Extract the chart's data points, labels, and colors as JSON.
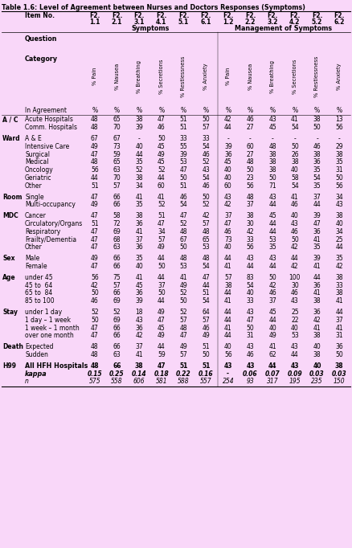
{
  "title": "Table 1.6: Level of Agreement between Nurses and Doctors Responses (Symptoms)",
  "bg_color": "#f9d7f9",
  "col_headers_row1": [
    "F2.",
    "F2.",
    "F2.",
    "F2.",
    "F2.",
    "F2.",
    "F2.",
    "F2.",
    "F2.",
    "F2.",
    "F2.",
    "F2."
  ],
  "col_headers_row2": [
    "1.1",
    "2.1",
    "3.1",
    "4.1",
    "5.1",
    "6.1",
    "1.2",
    "2.2",
    "3.2",
    "4.2",
    "5.2",
    "6.2"
  ],
  "group_headers": [
    "Symptoms",
    "Management of Symptoms"
  ],
  "rotated_headers": [
    "% Pain",
    "% Nausea",
    "% Breathing",
    "% Secretions",
    "% Restlessness",
    "% Anxiety",
    "% Pain",
    "% Nausea",
    "% Breathing",
    "% Secretions",
    "% Restlessness",
    "% Anxiety"
  ],
  "rows": [
    {
      "group": "",
      "label": "In Agreement",
      "values": [
        "%",
        "%",
        "%",
        "%",
        "%",
        "%",
        "%",
        "%",
        "%",
        "%",
        "%",
        "%"
      ],
      "bold": false,
      "italic": false
    },
    {
      "group": "A / C",
      "label": "Acute Hospitals",
      "values": [
        "48",
        "65",
        "38",
        "47",
        "51",
        "50",
        "42",
        "46",
        "43",
        "41",
        "38",
        "13"
      ],
      "bold": false,
      "italic": false
    },
    {
      "group": "",
      "label": "Comm. Hospitals",
      "values": [
        "48",
        "70",
        "39",
        "46",
        "51",
        "57",
        "44",
        "27",
        "45",
        "54",
        "50",
        "56"
      ],
      "bold": false,
      "italic": false
    },
    {
      "group": "Ward",
      "label": "A & E",
      "values": [
        "67",
        "67",
        "-",
        "50",
        "33",
        "33",
        "-",
        "-",
        "-",
        "-",
        "-",
        "-"
      ],
      "bold": false,
      "italic": false
    },
    {
      "group": "",
      "label": "Intensive Care",
      "values": [
        "49",
        "73",
        "40",
        "45",
        "55",
        "54",
        "39",
        "60",
        "48",
        "50",
        "46",
        "29"
      ],
      "bold": false,
      "italic": false
    },
    {
      "group": "",
      "label": "Surgical",
      "values": [
        "47",
        "59",
        "44",
        "49",
        "39",
        "46",
        "36",
        "27",
        "38",
        "26",
        "38",
        "38"
      ],
      "bold": false,
      "italic": false
    },
    {
      "group": "",
      "label": "Medical",
      "values": [
        "48",
        "65",
        "35",
        "45",
        "53",
        "52",
        "45",
        "48",
        "38",
        "38",
        "36",
        "35"
      ],
      "bold": false,
      "italic": false
    },
    {
      "group": "",
      "label": "Oncology",
      "values": [
        "56",
        "63",
        "52",
        "52",
        "47",
        "43",
        "40",
        "50",
        "38",
        "40",
        "35",
        "31"
      ],
      "bold": false,
      "italic": false
    },
    {
      "group": "",
      "label": "Geriatric",
      "values": [
        "44",
        "70",
        "38",
        "44",
        "50",
        "54",
        "40",
        "23",
        "50",
        "58",
        "54",
        "50"
      ],
      "bold": false,
      "italic": false
    },
    {
      "group": "",
      "label": "Other",
      "values": [
        "51",
        "57",
        "34",
        "60",
        "51",
        "46",
        "60",
        "56",
        "71",
        "54",
        "35",
        "56"
      ],
      "bold": false,
      "italic": false
    },
    {
      "group": "Room",
      "label": "Single",
      "values": [
        "47",
        "66",
        "41",
        "41",
        "46",
        "50",
        "43",
        "48",
        "43",
        "41",
        "37",
        "34"
      ],
      "bold": false,
      "italic": false
    },
    {
      "group": "",
      "label": "Multi-occupancy",
      "values": [
        "49",
        "66",
        "35",
        "52",
        "54",
        "52",
        "42",
        "37",
        "44",
        "46",
        "44",
        "43"
      ],
      "bold": false,
      "italic": false
    },
    {
      "group": "MDC",
      "label": "Cancer",
      "values": [
        "47",
        "58",
        "38",
        "51",
        "47",
        "42",
        "37",
        "38",
        "45",
        "40",
        "39",
        "38"
      ],
      "bold": false,
      "italic": false
    },
    {
      "group": "",
      "label": "Circulatory/Organs",
      "values": [
        "51",
        "72",
        "36",
        "47",
        "52",
        "57",
        "47",
        "30",
        "44",
        "43",
        "47",
        "40"
      ],
      "bold": false,
      "italic": false
    },
    {
      "group": "",
      "label": "Respiratory",
      "values": [
        "47",
        "69",
        "41",
        "34",
        "48",
        "48",
        "46",
        "42",
        "44",
        "46",
        "36",
        "34"
      ],
      "bold": false,
      "italic": false
    },
    {
      "group": "",
      "label": "Frailty/Dementia",
      "values": [
        "47",
        "68",
        "37",
        "57",
        "67",
        "65",
        "73",
        "33",
        "53",
        "50",
        "41",
        "25"
      ],
      "bold": false,
      "italic": false
    },
    {
      "group": "",
      "label": "Other",
      "values": [
        "47",
        "63",
        "36",
        "49",
        "50",
        "53",
        "40",
        "56",
        "35",
        "42",
        "35",
        "44"
      ],
      "bold": false,
      "italic": false
    },
    {
      "group": "Sex",
      "label": "Male",
      "values": [
        "49",
        "66",
        "35",
        "44",
        "48",
        "48",
        "44",
        "43",
        "43",
        "44",
        "39",
        "35"
      ],
      "bold": false,
      "italic": false
    },
    {
      "group": "",
      "label": "Female",
      "values": [
        "47",
        "66",
        "40",
        "50",
        "53",
        "54",
        "41",
        "44",
        "44",
        "42",
        "41",
        "42"
      ],
      "bold": false,
      "italic": false
    },
    {
      "group": "Age",
      "label": "under 45",
      "values": [
        "56",
        "75",
        "41",
        "44",
        "41",
        "47",
        "57",
        "83",
        "50",
        "100",
        "44",
        "38"
      ],
      "bold": false,
      "italic": false
    },
    {
      "group": "",
      "label": "45 to  64",
      "values": [
        "42",
        "57",
        "45",
        "37",
        "49",
        "44",
        "38",
        "54",
        "42",
        "30",
        "36",
        "33"
      ],
      "bold": false,
      "italic": false
    },
    {
      "group": "",
      "label": "65 to  84",
      "values": [
        "50",
        "66",
        "36",
        "50",
        "52",
        "51",
        "44",
        "40",
        "46",
        "46",
        "41",
        "38"
      ],
      "bold": false,
      "italic": false
    },
    {
      "group": "",
      "label": "85 to 100",
      "values": [
        "46",
        "69",
        "39",
        "44",
        "50",
        "54",
        "41",
        "33",
        "37",
        "43",
        "38",
        "41"
      ],
      "bold": false,
      "italic": false
    },
    {
      "group": "Stay",
      "label": "under 1 day",
      "values": [
        "52",
        "52",
        "18",
        "49",
        "52",
        "64",
        "44",
        "43",
        "45",
        "25",
        "36",
        "44"
      ],
      "bold": false,
      "italic": false
    },
    {
      "group": "",
      "label": "1 day – 1 week",
      "values": [
        "50",
        "69",
        "43",
        "47",
        "57",
        "57",
        "44",
        "47",
        "44",
        "22",
        "42",
        "37"
      ],
      "bold": false,
      "italic": false
    },
    {
      "group": "",
      "label": "1 week – 1 month",
      "values": [
        "47",
        "66",
        "36",
        "45",
        "48",
        "46",
        "41",
        "50",
        "40",
        "40",
        "41",
        "41"
      ],
      "bold": false,
      "italic": false
    },
    {
      "group": "",
      "label": "over one month",
      "values": [
        "47",
        "66",
        "42",
        "49",
        "47",
        "49",
        "44",
        "31",
        "49",
        "53",
        "38",
        "31"
      ],
      "bold": false,
      "italic": false
    },
    {
      "group": "Death",
      "label": "Expected",
      "values": [
        "48",
        "66",
        "37",
        "44",
        "49",
        "51",
        "40",
        "43",
        "41",
        "43",
        "40",
        "36"
      ],
      "bold": false,
      "italic": false
    },
    {
      "group": "",
      "label": "Sudden",
      "values": [
        "48",
        "63",
        "41",
        "59",
        "57",
        "50",
        "56",
        "46",
        "62",
        "44",
        "38",
        "50"
      ],
      "bold": false,
      "italic": false
    },
    {
      "group": "H99",
      "label": "All HFH Hospitals",
      "values": [
        "48",
        "66",
        "38",
        "47",
        "51",
        "51",
        "43",
        "43",
        "44",
        "43",
        "40",
        "38"
      ],
      "bold": true,
      "italic": false
    },
    {
      "group": "H99",
      "label": "kappa",
      "values": [
        "0.15",
        "0.25",
        "0.14",
        "0.18",
        "0.22",
        "0.16",
        "-",
        "0.06",
        "0.07",
        "0.09",
        "0.03",
        "0.03"
      ],
      "bold": true,
      "italic": true
    },
    {
      "group": "",
      "label": "n",
      "values": [
        "575",
        "558",
        "606",
        "581",
        "588",
        "557",
        "254",
        "93",
        "317",
        "195",
        "235",
        "150"
      ],
      "bold": false,
      "italic": true
    }
  ]
}
